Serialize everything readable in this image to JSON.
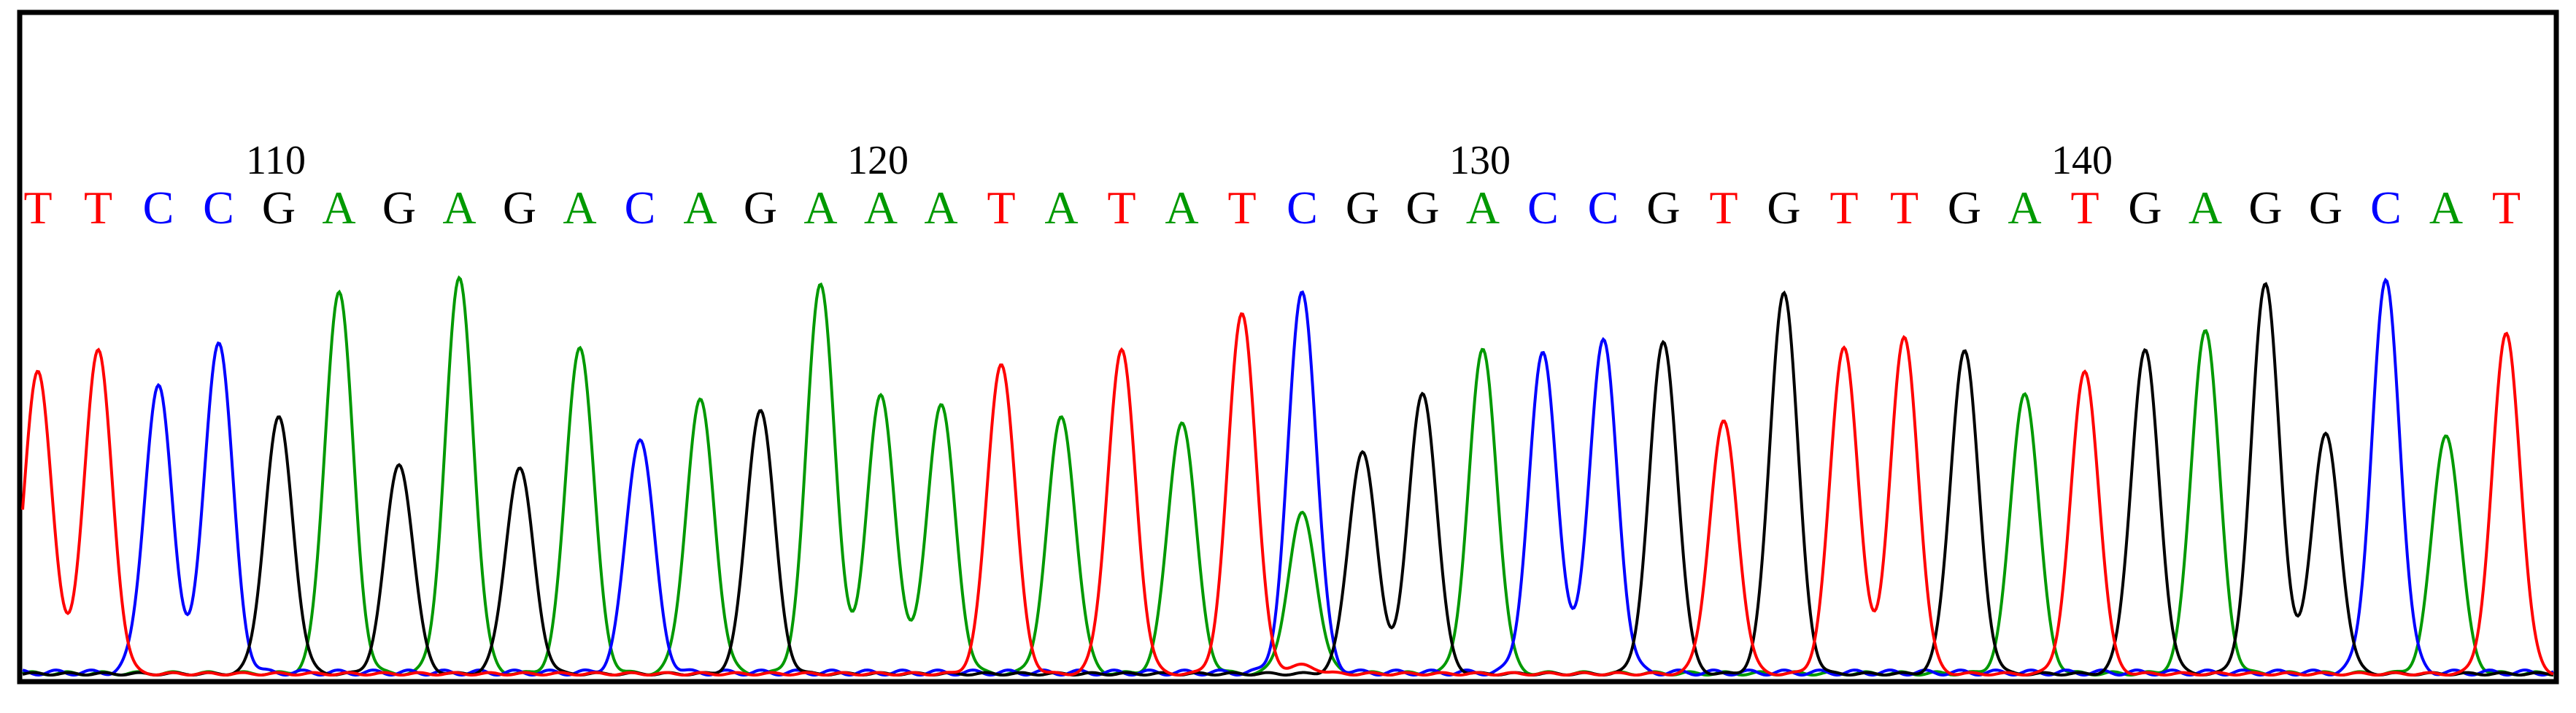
{
  "chart_data": {
    "type": "line",
    "subtype": "dna-sequencing-chromatogram",
    "sequence": [
      "T",
      "T",
      "C",
      "C",
      "G",
      "A",
      "G",
      "A",
      "G",
      "A",
      "C",
      "A",
      "G",
      "A",
      "A",
      "A",
      "T",
      "A",
      "T",
      "A",
      "T",
      "C",
      "G",
      "G",
      "A",
      "C",
      "C",
      "G",
      "T",
      "G",
      "T",
      "T",
      "G",
      "A",
      "T",
      "G",
      "A",
      "G",
      "G",
      "C",
      "A",
      "T"
    ],
    "first_base_position": 106,
    "position_ticks": [
      {
        "label": "110",
        "index": 4
      },
      {
        "label": "120",
        "index": 14
      },
      {
        "label": "130",
        "index": 24
      },
      {
        "label": "140",
        "index": 34
      }
    ],
    "peak_heights": [
      0.72,
      0.77,
      0.68,
      0.79,
      0.61,
      0.91,
      0.5,
      0.94,
      0.49,
      0.78,
      0.56,
      0.65,
      0.63,
      0.93,
      0.66,
      0.64,
      0.74,
      0.61,
      0.77,
      0.6,
      0.86,
      0.86,
      0.53,
      0.67,
      0.77,
      0.76,
      0.79,
      0.79,
      0.6,
      0.91,
      0.78,
      0.8,
      0.77,
      0.67,
      0.72,
      0.77,
      0.82,
      0.93,
      0.57,
      0.93,
      0.57,
      0.81
    ],
    "secondary_peaks": [
      {
        "index": 21,
        "base": "A",
        "height": 0.38
      },
      {
        "index": 21,
        "base": "C",
        "height": 0.05
      },
      {
        "index": 21,
        "base": "T",
        "height": 0.02
      }
    ],
    "ylim": [
      0,
      1
    ],
    "grid": false,
    "legend": "none",
    "colors": {
      "A": "#009900",
      "C": "#0000ff",
      "G": "#000000",
      "T": "#ff0000"
    },
    "baseline_noise": {
      "A": 0.008,
      "C": 0.012,
      "G": 0.006,
      "T": 0.006
    }
  }
}
